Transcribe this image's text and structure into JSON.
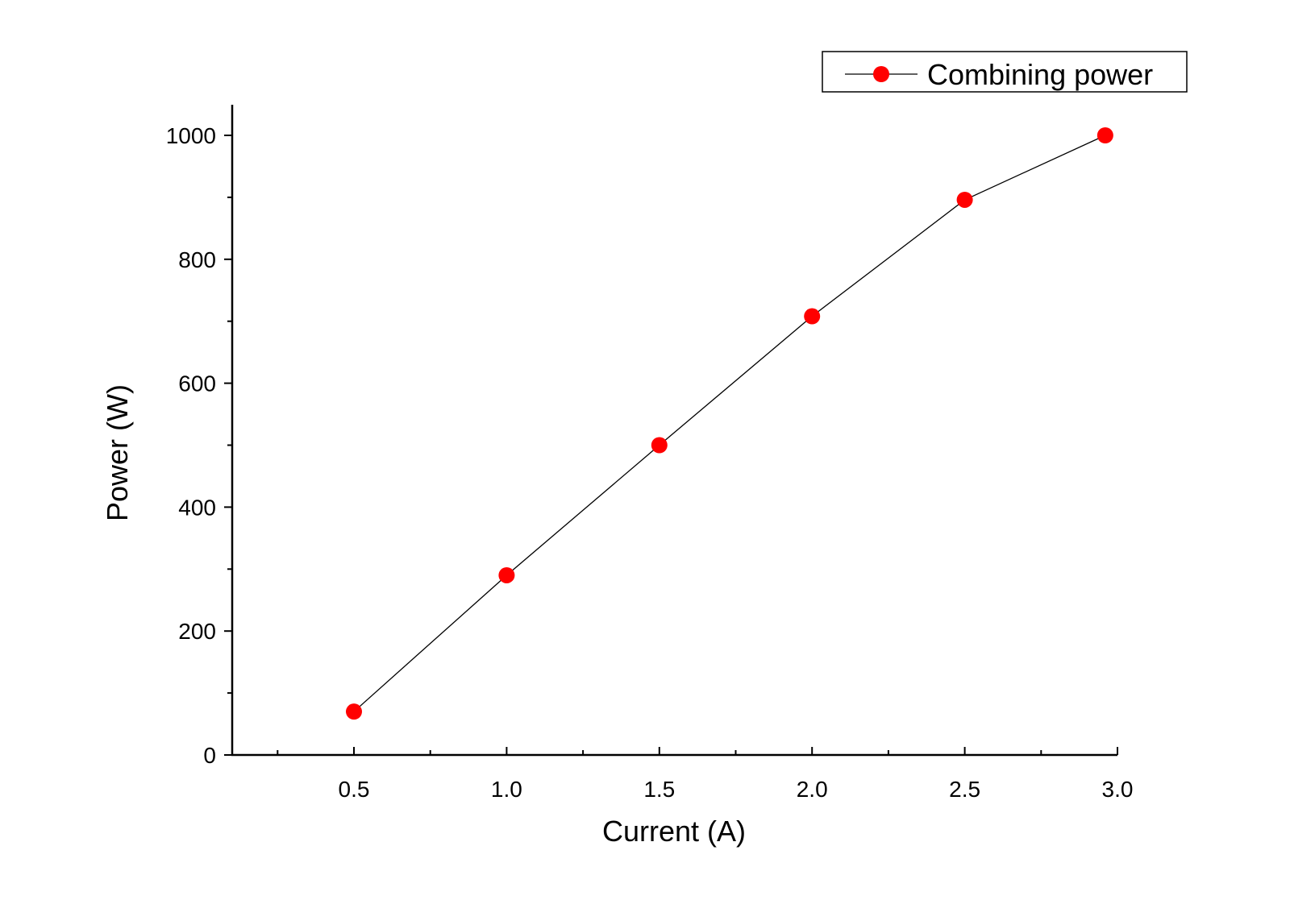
{
  "chart_data": {
    "type": "line",
    "title": "",
    "xlabel": "Current (A)",
    "ylabel": "Power (W)",
    "xlim": [
      0.1,
      3.0
    ],
    "ylim": [
      0,
      1050
    ],
    "x_ticks": [
      0.5,
      1.0,
      1.5,
      2.0,
      2.5,
      3.0
    ],
    "x_tick_labels": [
      "0.5",
      "1.0",
      "1.5",
      "2.0",
      "2.5",
      "3.0"
    ],
    "y_ticks": [
      0,
      200,
      400,
      600,
      800,
      1000
    ],
    "y_tick_labels": [
      "0",
      "200",
      "400",
      "600",
      "800",
      "1000"
    ],
    "grid": false,
    "legend_position": "top-right",
    "series": [
      {
        "name": "Combining power",
        "color": "#ff0000",
        "line_color": "#000000",
        "marker": "circle",
        "x": [
          0.5,
          1.0,
          1.5,
          2.0,
          2.5,
          2.96
        ],
        "y": [
          70,
          290,
          500,
          708,
          896,
          1000
        ]
      }
    ]
  }
}
